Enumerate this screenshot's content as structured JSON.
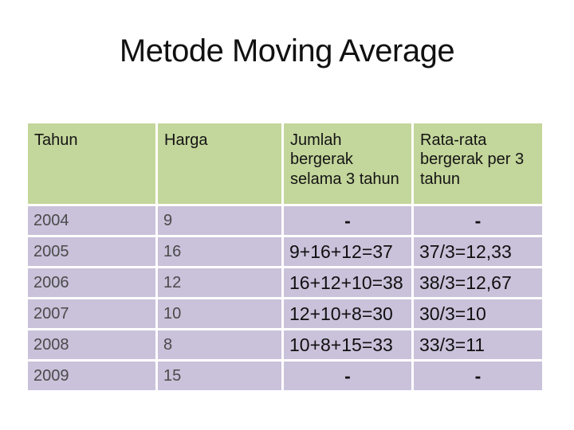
{
  "slide": {
    "title": "Metode Moving Average",
    "background_color": "#ffffff"
  },
  "table": {
    "headers": [
      "Tahun",
      "Harga",
      "Jumlah bergerak selama 3 tahun",
      "Rata-rata bergerak per 3 tahun"
    ],
    "rows": [
      {
        "tahun": "2004",
        "harga": "9",
        "jumlah": "-",
        "rata": "-"
      },
      {
        "tahun": "2005",
        "harga": "16",
        "jumlah": "9+16+12=37",
        "rata": "37/3=12,33"
      },
      {
        "tahun": "2006",
        "harga": "12",
        "jumlah": "16+12+10=38",
        "rata": "38/3=12,67"
      },
      {
        "tahun": "2007",
        "harga": "10",
        "jumlah": "12+10+8=30",
        "rata": "30/3=10"
      },
      {
        "tahun": "2008",
        "harga": "8",
        "jumlah": "10+8+15=33",
        "rata": "33/3=11"
      },
      {
        "tahun": "2009",
        "harga": "15",
        "jumlah": "-",
        "rata": "-"
      }
    ],
    "colors": {
      "header_bg": "#c3d69b",
      "row_bg": "#cac1da",
      "gutter": "#ffffff",
      "header_text": "#141414",
      "year_text": "#4a4a4a",
      "formula_text": "#101010"
    }
  }
}
